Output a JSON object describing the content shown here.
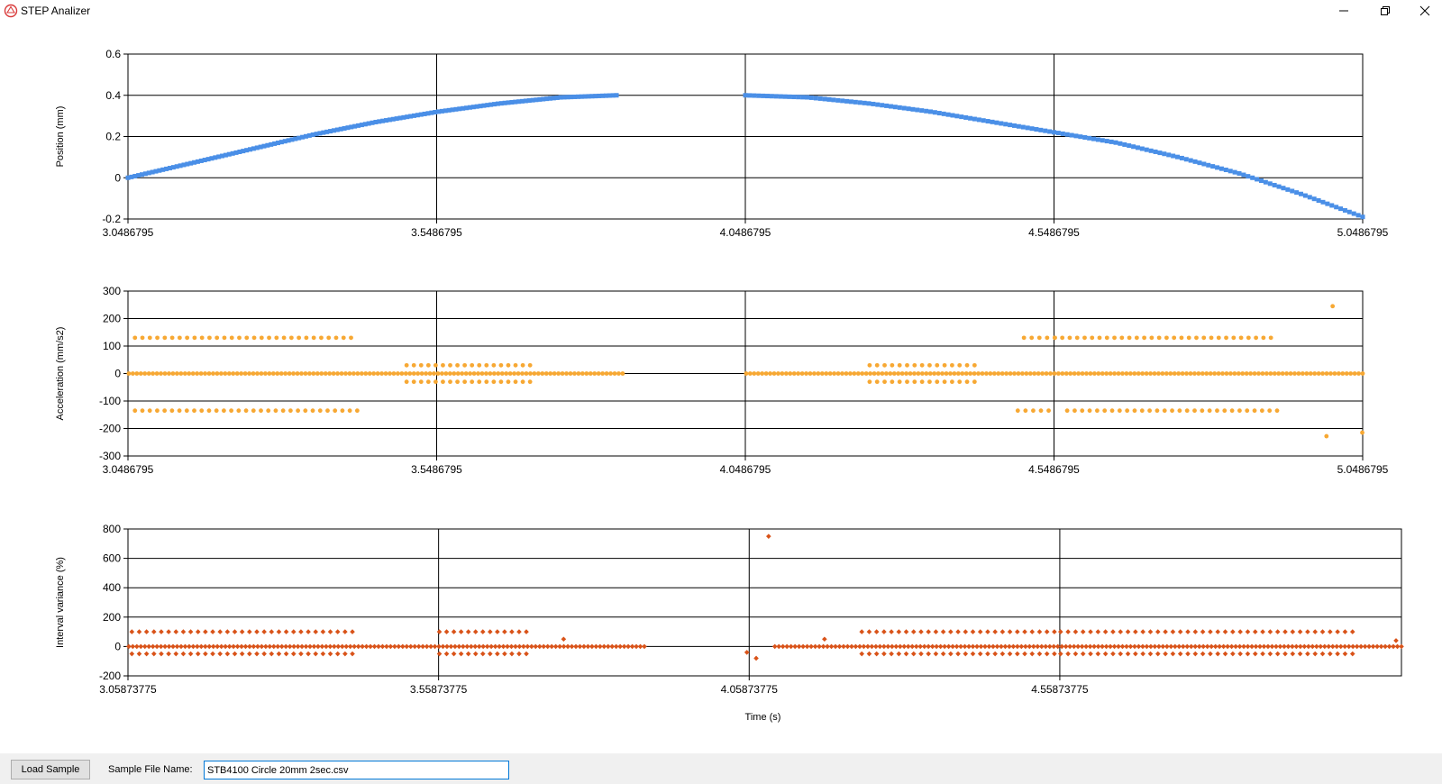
{
  "window": {
    "title": "STEP Analizer",
    "icon": "app-logo-icon",
    "controls": [
      "minimize-icon",
      "restore-icon",
      "close-icon"
    ]
  },
  "footer": {
    "load_button_label": "Load Sample",
    "file_name_label": "Sample File Name:",
    "file_name_value": "STB4100 Circle 20mm 2sec.csv"
  },
  "chart_data": [
    {
      "type": "scatter",
      "ylabel": "Position (mm)",
      "xlabel": "",
      "xlim": [
        3.0486795,
        5.0486795
      ],
      "ylim": [
        -0.2,
        0.6
      ],
      "x_ticks": [
        "3.0486795",
        "3.5486795",
        "4.0486795",
        "4.5486795",
        "5.0486795"
      ],
      "y_ticks": [
        "-0.2",
        "0",
        "0.2",
        "0.4",
        "0.6"
      ],
      "grid": true,
      "color": "#4a8fe7",
      "segments": [
        {
          "x": [
            3.0487,
            3.15,
            3.25,
            3.35,
            3.45,
            3.55,
            3.65,
            3.75,
            3.84
          ],
          "y": [
            0.0,
            0.07,
            0.14,
            0.21,
            0.27,
            0.32,
            0.36,
            0.39,
            0.4
          ]
        },
        {
          "x": [
            4.0487,
            4.15,
            4.25,
            4.35,
            4.45,
            4.55,
            4.65,
            4.75,
            4.85,
            4.95,
            5.0487
          ],
          "y": [
            0.4,
            0.39,
            0.36,
            0.32,
            0.27,
            0.22,
            0.17,
            0.1,
            0.02,
            -0.08,
            -0.19
          ]
        }
      ]
    },
    {
      "type": "scatter",
      "ylabel": "Acceleration (mm/s2)",
      "xlabel": "",
      "xlim": [
        3.0486795,
        5.0486795
      ],
      "ylim": [
        -300,
        300
      ],
      "x_ticks": [
        "3.0486795",
        "3.5486795",
        "4.0486795",
        "4.5486795",
        "5.0486795"
      ],
      "y_ticks": [
        "-300",
        "-200",
        "-100",
        "0",
        "100",
        "200",
        "300"
      ],
      "grid": true,
      "color": "#f7a833",
      "groups": [
        {
          "y": 130,
          "ranges": [
            [
              3.06,
              3.41
            ],
            [
              4.5,
              4.55
            ],
            [
              4.55,
              4.9
            ]
          ]
        },
        {
          "y": -135,
          "ranges": [
            [
              3.06,
              3.42
            ],
            [
              4.49,
              4.54
            ],
            [
              4.57,
              4.91
            ]
          ]
        },
        {
          "y": 0,
          "ranges": [
            [
              3.05,
              3.85
            ],
            [
              4.05,
              5.0487
            ]
          ]
        },
        {
          "y": 30,
          "ranges": [
            [
              3.5,
              3.7
            ],
            [
              4.25,
              4.42
            ]
          ]
        },
        {
          "y": -30,
          "ranges": [
            [
              3.5,
              3.7
            ],
            [
              4.25,
              4.42
            ]
          ]
        }
      ],
      "outliers": [
        [
          5.0,
          245
        ],
        [
          4.99,
          -228
        ],
        [
          5.048,
          -215
        ]
      ]
    },
    {
      "type": "scatter",
      "ylabel": "Interval variance (%)",
      "xlabel": "Time (s)",
      "xlim": [
        3.05873775,
        5.1087
      ],
      "ylim": [
        -200,
        800
      ],
      "x_ticks": [
        "3.05873775",
        "3.55873775",
        "4.05873775",
        "4.55873775"
      ],
      "y_ticks": [
        "-200",
        "0",
        "200",
        "400",
        "600",
        "800"
      ],
      "grid": true,
      "color": "#d95319",
      "groups": [
        {
          "y": 100,
          "ranges": [
            [
              3.065,
              3.42
            ],
            [
              3.56,
              3.7
            ],
            [
              4.24,
              4.55
            ],
            [
              4.56,
              5.03
            ]
          ]
        },
        {
          "y": -50,
          "ranges": [
            [
              3.065,
              3.42
            ],
            [
              3.56,
              3.7
            ],
            [
              4.24,
              4.55
            ],
            [
              4.56,
              5.03
            ]
          ]
        },
        {
          "y": 0,
          "ranges": [
            [
              3.06,
              3.89
            ],
            [
              4.1,
              5.1087
            ]
          ]
        }
      ],
      "outliers": [
        [
          4.09,
          750
        ],
        [
          4.07,
          -80
        ],
        [
          4.055,
          -40
        ],
        [
          3.76,
          50
        ],
        [
          4.18,
          50
        ],
        [
          5.1,
          40
        ]
      ]
    }
  ]
}
